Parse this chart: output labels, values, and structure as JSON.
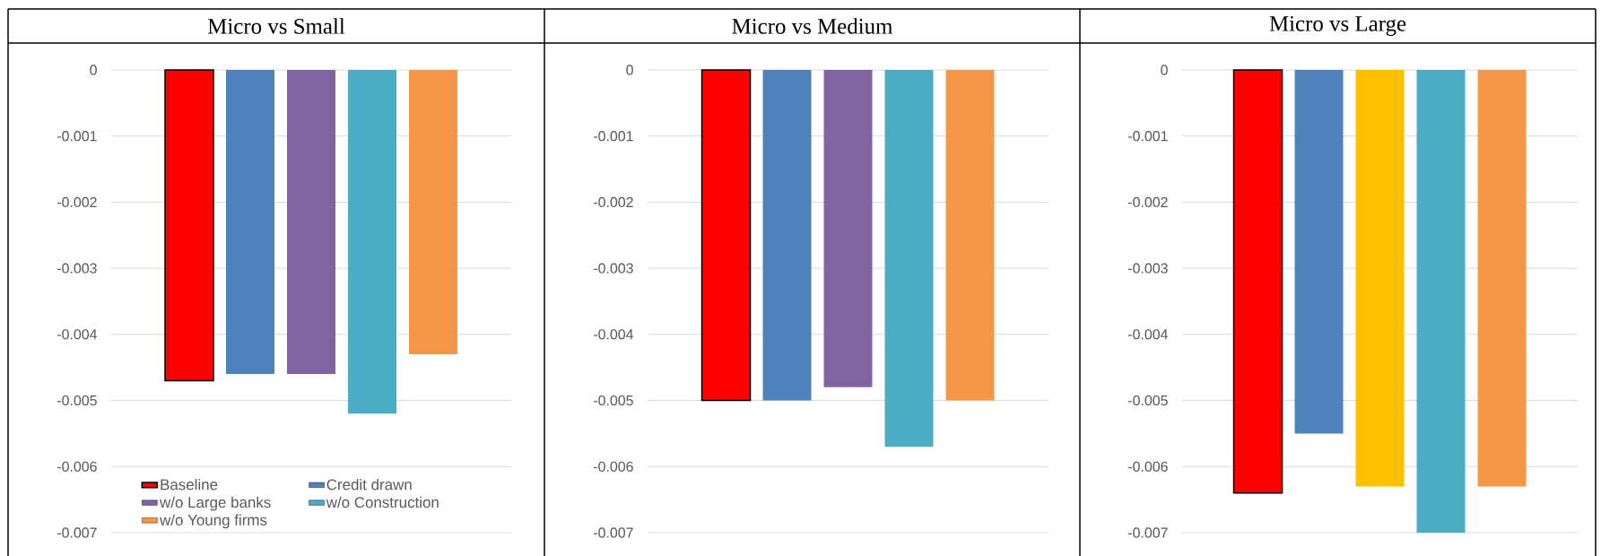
{
  "chart_data": [
    {
      "type": "bar",
      "title": "Micro vs Small",
      "categories": [
        null
      ],
      "ylim": [
        -0.007,
        0
      ],
      "yticks": [
        -0.007,
        -0.006,
        -0.005,
        -0.004,
        -0.003,
        -0.002,
        -0.001,
        0
      ],
      "grid": "y",
      "legend": "bottom",
      "series": [
        {
          "name": "Baseline",
          "color": "#ff0000",
          "values": [
            -0.0047
          ]
        },
        {
          "name": "Credit drawn",
          "color": "#4f81bd",
          "values": [
            -0.0046
          ]
        },
        {
          "name": "w/o Large banks",
          "color": "#8064a2",
          "values": [
            -0.0046
          ]
        },
        {
          "name": "w/o Construction",
          "color": "#4bacc6",
          "values": [
            -0.0052
          ]
        },
        {
          "name": "w/o Young firms",
          "color": "#f79646",
          "values": [
            -0.0043
          ]
        }
      ]
    },
    {
      "type": "bar",
      "title": "Micro vs Medium",
      "categories": [
        null
      ],
      "ylim": [
        -0.007,
        0
      ],
      "yticks": [
        -0.007,
        -0.006,
        -0.005,
        -0.004,
        -0.003,
        -0.002,
        -0.001,
        0
      ],
      "grid": "y",
      "series": [
        {
          "color": "#ff0000",
          "values": [
            -0.005
          ]
        },
        {
          "color": "#4f81bd",
          "values": [
            -0.005
          ]
        },
        {
          "color": "#8064a2",
          "values": [
            -0.0048
          ]
        },
        {
          "color": "#4bacc6",
          "values": [
            -0.0057
          ]
        },
        {
          "color": "#f79646",
          "values": [
            -0.005
          ]
        }
      ]
    },
    {
      "type": "bar",
      "title": "Micro vs Large",
      "categories": [
        null
      ],
      "ylim": [
        -0.007,
        0
      ],
      "yticks": [
        -0.007,
        -0.006,
        -0.005,
        -0.004,
        -0.003,
        -0.002,
        -0.001,
        0
      ],
      "grid": "y",
      "series": [
        {
          "color": "#ff0000",
          "values": [
            -0.0064
          ]
        },
        {
          "color": "#4f81bd",
          "values": [
            -0.0055
          ]
        },
        {
          "color": "#ffc000",
          "values": [
            -0.0063
          ]
        },
        {
          "color": "#4bacc6",
          "values": [
            -0.007
          ]
        },
        {
          "color": "#f79646",
          "values": [
            -0.0063
          ]
        }
      ]
    }
  ]
}
